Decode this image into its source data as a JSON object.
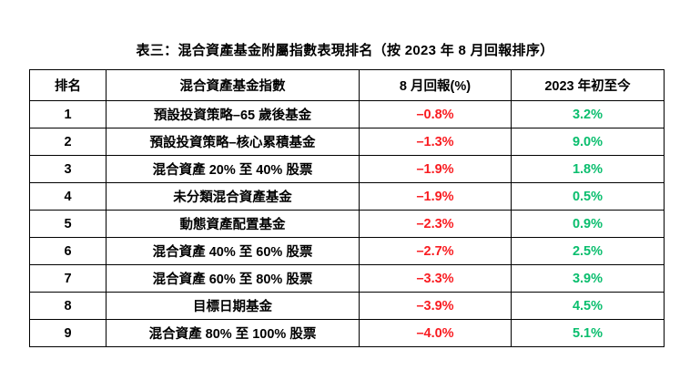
{
  "title": "表三：混合資產基金附屬指數表現排名（按 2023 年 8 月回報排序）",
  "colors": {
    "negative": "#f91c21",
    "positive": "#0abe6e",
    "border": "#000000",
    "text": "#000000",
    "background": "#ffffff"
  },
  "table": {
    "headers": {
      "rank": "排名",
      "index": "混合資產基金指數",
      "aug_return": "8 月回報(%)",
      "ytd": "2023 年初至今"
    },
    "rows": [
      {
        "rank": "1",
        "index": "預設投資策略–65 歲後基金",
        "aug_return": "–0.8%",
        "ytd": "3.2%"
      },
      {
        "rank": "2",
        "index": "預設投資策略–核心累積基金",
        "aug_return": "–1.3%",
        "ytd": "9.0%"
      },
      {
        "rank": "3",
        "index": "混合資產 20% 至 40% 股票",
        "aug_return": "–1.9%",
        "ytd": "1.8%"
      },
      {
        "rank": "4",
        "index": "未分類混合資產基金",
        "aug_return": "–1.9%",
        "ytd": "0.5%"
      },
      {
        "rank": "5",
        "index": "動態資產配置基金",
        "aug_return": "–2.3%",
        "ytd": "0.9%"
      },
      {
        "rank": "6",
        "index": "混合資產 40% 至 60% 股票",
        "aug_return": "–2.7%",
        "ytd": "2.5%"
      },
      {
        "rank": "7",
        "index": "混合資產 60% 至 80% 股票",
        "aug_return": "–3.3%",
        "ytd": "3.9%"
      },
      {
        "rank": "8",
        "index": "目標日期基金",
        "aug_return": "–3.9%",
        "ytd": "4.5%"
      },
      {
        "rank": "9",
        "index": "混合資產 80% 至 100% 股票",
        "aug_return": "–4.0%",
        "ytd": "5.1%"
      }
    ]
  },
  "chart_data": {
    "type": "table",
    "title": "表三：混合資產基金附屬指數表現排名（按 2023 年 8 月回報排序）",
    "columns": [
      "排名",
      "混合資產基金指數",
      "8 月回報(%)",
      "2023 年初至今"
    ],
    "rows": [
      [
        1,
        "預設投資策略–65 歲後基金",
        -0.8,
        3.2
      ],
      [
        2,
        "預設投資策略–核心累積基金",
        -1.3,
        9.0
      ],
      [
        3,
        "混合資產 20% 至 40% 股票",
        -1.9,
        1.8
      ],
      [
        4,
        "未分類混合資產基金",
        -1.9,
        0.5
      ],
      [
        5,
        "動態資產配置基金",
        -2.3,
        0.9
      ],
      [
        6,
        "混合資產 40% 至 60% 股票",
        -2.7,
        2.5
      ],
      [
        7,
        "混合資產 60% 至 80% 股票",
        -3.3,
        3.9
      ],
      [
        8,
        "目標日期基金",
        -3.9,
        4.5
      ],
      [
        9,
        "混合資產 80% 至 100% 股票",
        -4.0,
        5.1
      ]
    ],
    "notes": "negative august returns shown in red, positive YTD returns shown in green"
  }
}
